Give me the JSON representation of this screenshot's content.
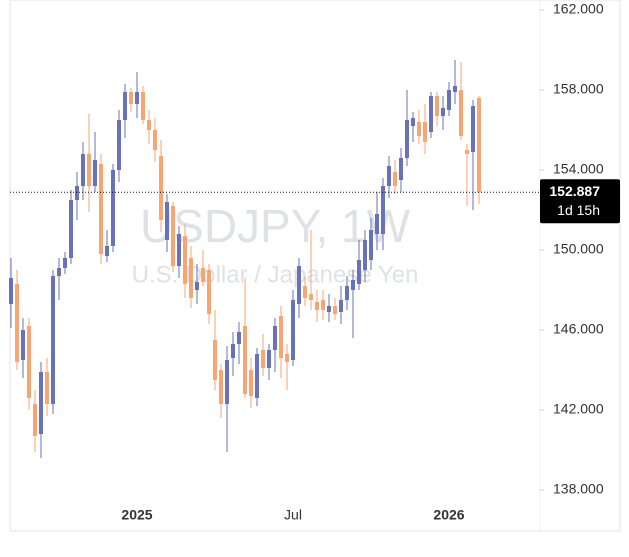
{
  "chart_data": {
    "type": "candlestick",
    "watermark": "USDJPY, 1W",
    "watermark_subtitle": "U.S. Dollar / Japanese Yen",
    "up_color": "#6872b8",
    "down_color": "#f7a572",
    "categories": [
      null,
      null,
      null,
      null,
      null,
      null,
      null,
      null,
      null,
      null,
      null,
      null,
      null,
      null,
      null,
      null,
      null,
      null,
      null,
      null,
      null,
      "2025",
      null,
      null,
      null,
      null,
      null,
      null,
      null,
      null,
      null,
      null,
      null,
      null,
      null,
      null,
      null,
      null,
      null,
      null,
      null,
      null,
      null,
      null,
      null,
      null,
      null,
      "Jul",
      null,
      null,
      null,
      null,
      null,
      null,
      null,
      null,
      null,
      null,
      null,
      null,
      null,
      null,
      null,
      null,
      null,
      null,
      null,
      null,
      null,
      null,
      null,
      null,
      null,
      "2026",
      null,
      null,
      null,
      null,
      null
    ],
    "open": [
      147.3,
      148.3,
      144.5,
      146.2,
      142.3,
      140.8,
      143.9,
      142.3,
      148.7,
      149.1,
      149.6,
      152.5,
      153.2,
      154.8,
      153.2,
      154.3,
      149.7,
      150.2,
      154.0,
      156.5,
      157.9,
      157.3,
      157.9,
      156.5,
      156.0,
      154.7,
      150.5,
      152.2,
      149.2,
      150.7,
      149.6,
      148.0,
      149.1,
      149.0,
      145.5,
      144.0,
      142.3,
      144.6,
      145.3,
      146.2,
      144.0,
      142.6,
      145.0,
      144.1,
      145.0,
      146.7,
      144.8,
      144.5,
      147.3,
      148.2,
      147.8,
      147.4,
      147.5,
      146.9,
      147.2,
      146.9,
      147.5,
      148.0,
      148.3,
      149.0,
      149.5,
      150.8,
      150.8,
      153.2,
      153.9,
      153.5,
      154.6,
      156.2,
      156.4,
      156.4,
      155.9,
      157.7,
      156.7,
      157.0,
      157.9,
      158.0,
      155.0,
      154.9,
      157.6
    ],
    "high": [
      149.6,
      149.0,
      146.6,
      146.6,
      143.0,
      144.4,
      144.6,
      149.0,
      149.6,
      149.9,
      153.0,
      153.9,
      155.4,
      156.8,
      155.9,
      154.8,
      151.0,
      154.3,
      157.0,
      158.3,
      158.1,
      158.9,
      158.2,
      157.0,
      156.6,
      155.5,
      152.8,
      152.4,
      151.2,
      151.3,
      150.2,
      149.3,
      150.0,
      149.3,
      147.0,
      144.3,
      145.2,
      145.9,
      146.4,
      148.6,
      144.6,
      145.1,
      145.8,
      145.3,
      146.6,
      147.2,
      145.3,
      148.0,
      149.6,
      148.7,
      151.0,
      148.0,
      148.0,
      147.8,
      147.6,
      148.2,
      148.7,
      149.0,
      150.5,
      151.0,
      151.6,
      152.9,
      153.6,
      154.7,
      154.5,
      155.1,
      158.0,
      156.9,
      157.0,
      157.3,
      157.9,
      157.9,
      157.7,
      158.4,
      159.5,
      159.4,
      155.3,
      157.5,
      157.7
    ],
    "low": [
      146.1,
      144.0,
      143.6,
      142.0,
      139.9,
      139.6,
      141.7,
      141.8,
      147.5,
      148.8,
      149.3,
      151.5,
      152.5,
      151.9,
      152.9,
      149.3,
      149.4,
      149.9,
      153.4,
      155.6,
      156.9,
      156.6,
      156.3,
      155.3,
      154.4,
      150.9,
      149.9,
      148.9,
      148.6,
      147.6,
      147.1,
      147.3,
      148.2,
      146.3,
      143.0,
      141.6,
      139.9,
      143.7,
      144.3,
      142.6,
      142.1,
      142.2,
      143.7,
      143.5,
      143.9,
      143.6,
      143.0,
      144.2,
      146.6,
      147.2,
      147.0,
      146.4,
      146.5,
      146.4,
      146.5,
      146.3,
      147.0,
      145.6,
      148.0,
      148.4,
      149.0,
      150.0,
      150.0,
      152.6,
      152.8,
      152.9,
      154.2,
      155.4,
      155.3,
      154.8,
      155.6,
      156.2,
      156.0,
      156.7,
      157.3,
      155.5,
      152.2,
      152.0,
      152.3
    ],
    "close": [
      148.6,
      144.4,
      146.0,
      142.6,
      140.7,
      143.9,
      142.3,
      148.7,
      149.1,
      149.6,
      152.5,
      153.2,
      154.8,
      153.2,
      154.5,
      149.8,
      150.2,
      154.0,
      156.5,
      157.9,
      157.3,
      157.9,
      156.5,
      156.0,
      155.0,
      151.5,
      152.4,
      149.2,
      150.8,
      148.3,
      147.6,
      148.4,
      148.4,
      146.8,
      143.5,
      142.3,
      144.5,
      145.3,
      145.9,
      142.8,
      142.7,
      144.8,
      144.1,
      145.0,
      146.2,
      144.6,
      144.4,
      147.5,
      149.2,
      147.6,
      147.5,
      147.0,
      147.0,
      147.2,
      146.8,
      147.5,
      148.2,
      148.5,
      149.5,
      150.5,
      151.0,
      151.8,
      153.2,
      154.2,
      153.2,
      154.6,
      156.5,
      156.6,
      155.7,
      155.4,
      157.7,
      156.7,
      157.1,
      158.0,
      158.2,
      155.7,
      154.8,
      157.2,
      152.887
    ],
    "ylim": [
      137.5,
      162.5
    ],
    "yticks": [
      {
        "value": 138,
        "label": "138.000"
      },
      {
        "value": 142,
        "label": "142.000"
      },
      {
        "value": 146,
        "label": "146.000"
      },
      {
        "value": 150,
        "label": "150.000"
      },
      {
        "value": 154,
        "label": "154.000"
      },
      {
        "value": 158,
        "label": "158.000"
      },
      {
        "value": 162,
        "label": "162.000"
      }
    ],
    "last_price": 152.887,
    "countdown": "1d 15h"
  }
}
